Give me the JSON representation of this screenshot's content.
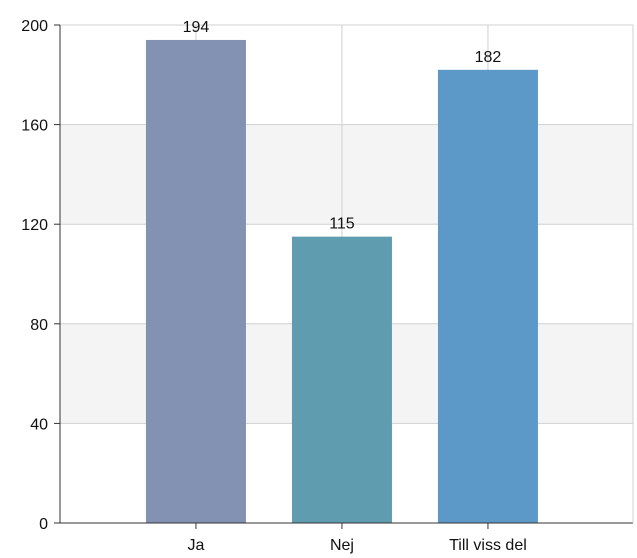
{
  "chart_data": {
    "type": "bar",
    "categories": [
      "Ja",
      "Nej",
      "Till viss del"
    ],
    "values": [
      194,
      115,
      182
    ],
    "bar_colors": [
      "#8391b3",
      "#5f9cb0",
      "#5c99c8"
    ],
    "ylim": [
      0,
      200
    ],
    "yticks": [
      0,
      40,
      80,
      120,
      160,
      200
    ],
    "title": "",
    "xlabel": "",
    "ylabel": "",
    "grid": true,
    "band_color": "#f4f4f4",
    "grid_color": "#d0d0d0"
  }
}
